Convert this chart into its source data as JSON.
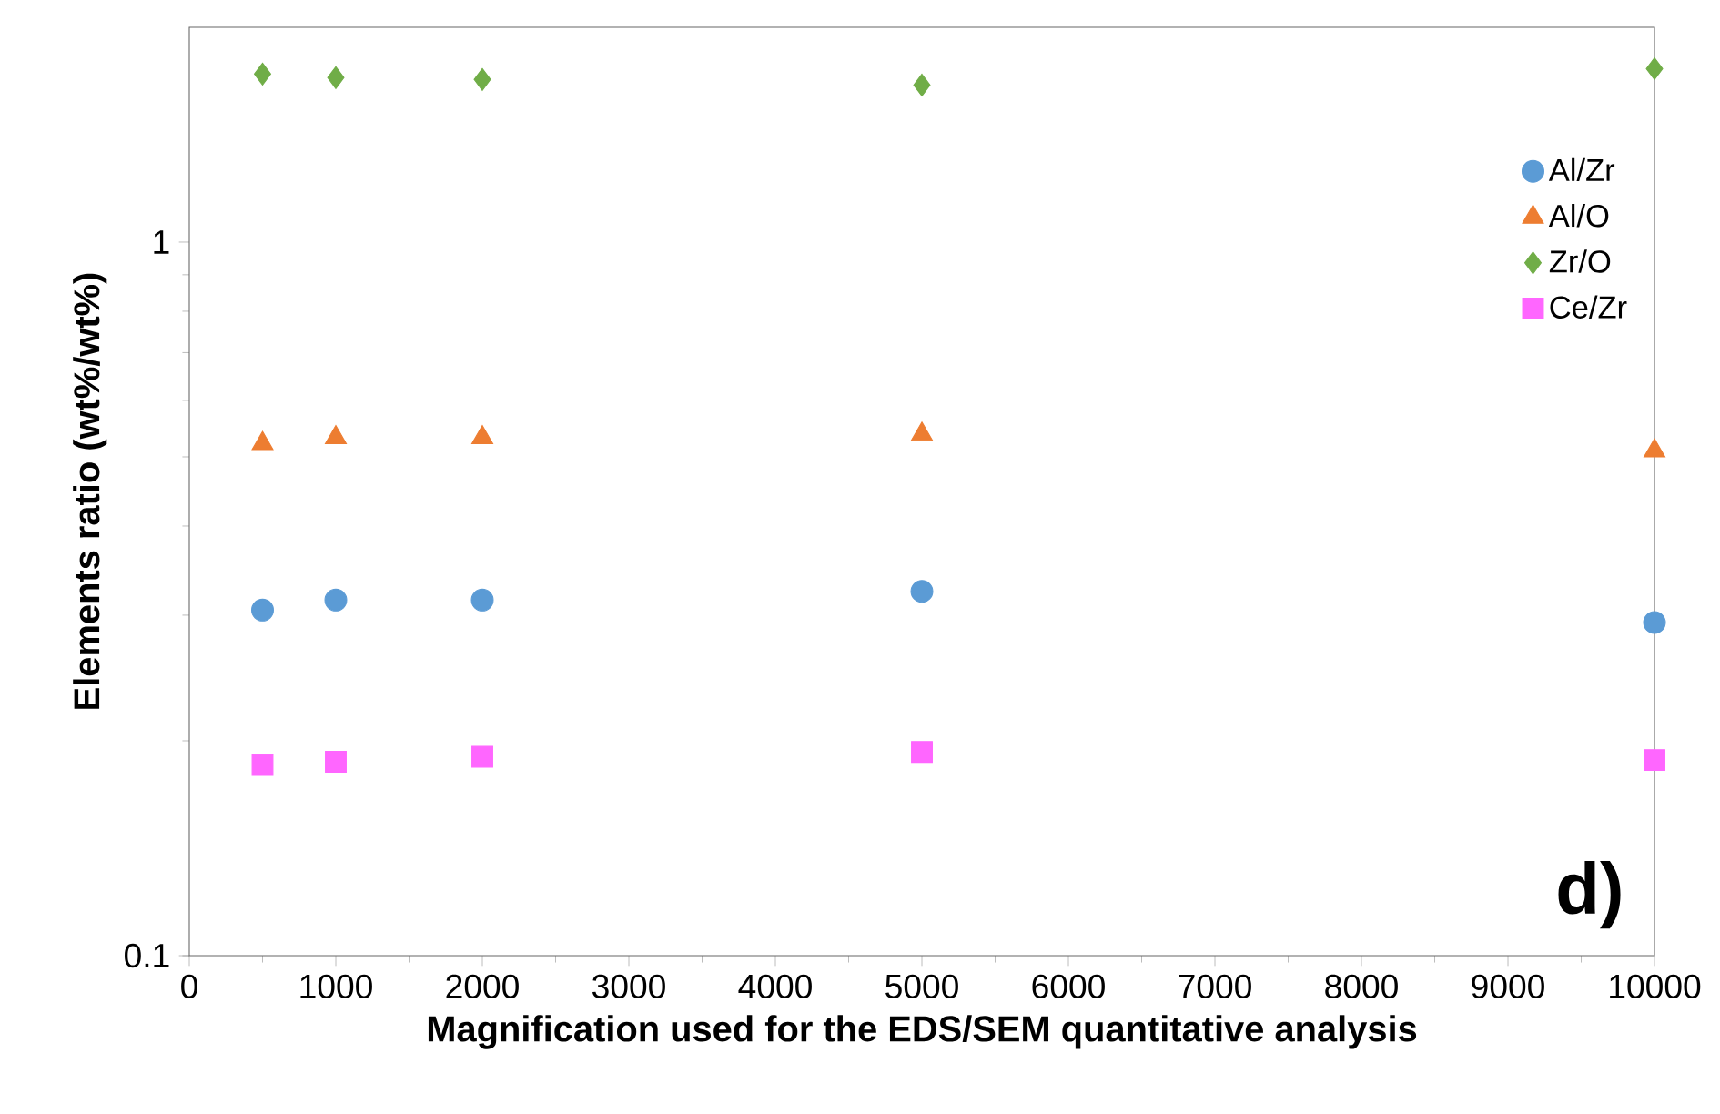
{
  "chart_data": {
    "type": "scatter",
    "xlabel": "Magnification used for the EDS/SEM quantitative analysis",
    "ylabel": "Elements ratio (wt%/wt%)",
    "x": [
      500,
      1000,
      2000,
      5000,
      10000
    ],
    "series": [
      {
        "name": "Al/Zr",
        "color": "#5b9bd5",
        "marker": "circle",
        "values": [
          0.305,
          0.315,
          0.315,
          0.324,
          0.293
        ]
      },
      {
        "name": "Al/O",
        "color": "#ed7d31",
        "marker": "triangle",
        "values": [
          0.522,
          0.532,
          0.532,
          0.538,
          0.51
        ]
      },
      {
        "name": "Zr/O",
        "color": "#70ad47",
        "marker": "diamond",
        "values": [
          1.72,
          1.7,
          1.69,
          1.66,
          1.75
        ]
      },
      {
        "name": "Ce/Zr",
        "color": "#ff66ff",
        "marker": "square",
        "values": [
          0.185,
          0.187,
          0.19,
          0.193,
          0.188
        ]
      }
    ],
    "log": "y",
    "xlim": [
      0,
      10000
    ],
    "ylim": [
      0.1,
      2
    ],
    "xticks": [
      0,
      1000,
      2000,
      3000,
      4000,
      5000,
      6000,
      7000,
      8000,
      9000,
      10000
    ],
    "yticks": [
      0.1,
      1
    ],
    "grid": false,
    "legend": "top right",
    "annotations": [
      "d)"
    ]
  }
}
